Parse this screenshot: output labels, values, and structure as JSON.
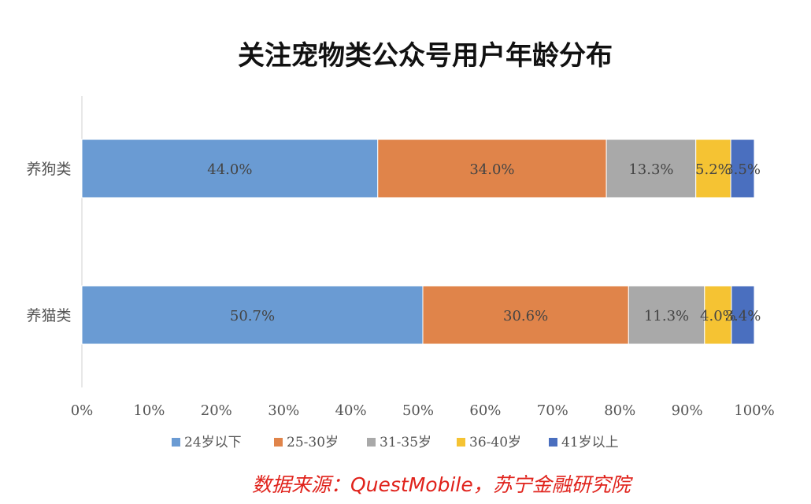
{
  "chart_data": {
    "type": "bar",
    "orientation": "horizontal",
    "stacked": "percent",
    "title": "关注宠物类公众号用户年龄分布",
    "categories": [
      "养狗类",
      "养猫类"
    ],
    "series": [
      {
        "name": "24岁以下",
        "color": "#6a9bd3",
        "values": [
          44.0,
          50.7
        ],
        "labels": [
          "44.0%",
          "50.7%"
        ]
      },
      {
        "name": "25-30岁",
        "color": "#e0844a",
        "values": [
          34.0,
          30.6
        ],
        "labels": [
          "34.0%",
          "30.6%"
        ]
      },
      {
        "name": "31-35岁",
        "color": "#a9a9a9",
        "values": [
          13.3,
          11.3
        ],
        "labels": [
          "13.3%",
          "11.3%"
        ]
      },
      {
        "name": "36-40岁",
        "color": "#f5c333",
        "values": [
          5.2,
          4.0
        ],
        "labels": [
          "5.2%",
          "4.0%"
        ]
      },
      {
        "name": "41岁以上",
        "color": "#4a6fbf",
        "values": [
          3.5,
          3.4
        ],
        "labels": [
          "3.5%",
          "3.4%"
        ]
      }
    ],
    "xlim": [
      0,
      100
    ],
    "xticks": [
      "0%",
      "10%",
      "20%",
      "30%",
      "40%",
      "50%",
      "60%",
      "70%",
      "80%",
      "90%",
      "100%"
    ],
    "grid": false,
    "legend": "bottom"
  },
  "source": "数据来源：QuestMobile，苏宁金融研究院"
}
